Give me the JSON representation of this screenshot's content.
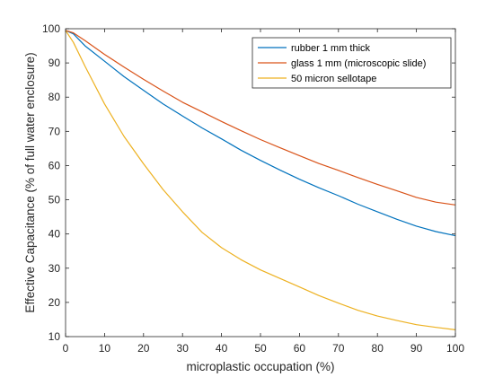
{
  "chart_data": {
    "type": "line",
    "title": "",
    "xlabel": "microplastic occupation (%)",
    "ylabel": "Effective Capacitance (% of full water enclosure)",
    "xlim": [
      0,
      100
    ],
    "ylim": [
      10,
      100
    ],
    "xticks": [
      0,
      10,
      20,
      30,
      40,
      50,
      60,
      70,
      80,
      90,
      100
    ],
    "yticks": [
      10,
      20,
      30,
      40,
      50,
      60,
      70,
      80,
      90,
      100
    ],
    "grid": false,
    "legend_position": "top-right",
    "series": [
      {
        "name": "rubber 1 mm thick",
        "color": "#0072bd",
        "x": [
          0,
          2,
          5,
          10,
          15,
          20,
          25,
          30,
          35,
          40,
          45,
          50,
          55,
          60,
          65,
          70,
          75,
          80,
          85,
          90,
          95,
          100
        ],
        "y": [
          99.5,
          98.5,
          95,
          90.5,
          86,
          82,
          78,
          74.5,
          71,
          67.8,
          64.5,
          61.5,
          58.7,
          56,
          53.5,
          51.2,
          48.7,
          46.5,
          44.3,
          42.3,
          40.7,
          39.5
        ]
      },
      {
        "name": "glass 1 mm (microscopic slide)",
        "color": "#d95319",
        "x": [
          0,
          2,
          5,
          10,
          15,
          20,
          25,
          30,
          35,
          40,
          45,
          50,
          55,
          60,
          65,
          70,
          75,
          80,
          85,
          90,
          95,
          100
        ],
        "y": [
          99.5,
          98.8,
          96.5,
          92.5,
          88.8,
          85.2,
          81.8,
          78.5,
          75.7,
          72.9,
          70.2,
          67.6,
          65.2,
          62.9,
          60.6,
          58.6,
          56.5,
          54.5,
          52.6,
          50.7,
          49.3,
          48.5
        ]
      },
      {
        "name": "50 micron sellotape",
        "color": "#edb120",
        "x": [
          0,
          2,
          5,
          10,
          15,
          20,
          25,
          30,
          35,
          40,
          45,
          50,
          55,
          60,
          65,
          70,
          75,
          80,
          85,
          90,
          95,
          100
        ],
        "y": [
          99.5,
          96,
          89,
          78,
          68.5,
          60.5,
          53,
          46.5,
          40.5,
          36,
          32.5,
          29.5,
          27,
          24.5,
          22,
          19.8,
          17.7,
          16,
          14.7,
          13.5,
          12.7,
          12
        ]
      }
    ]
  }
}
